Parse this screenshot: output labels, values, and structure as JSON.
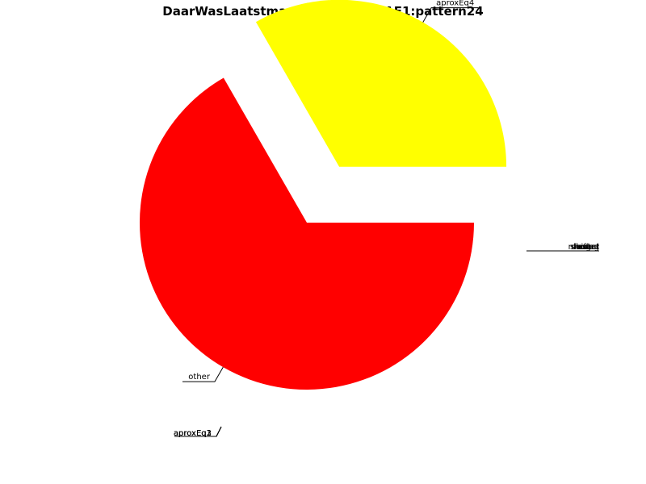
{
  "chart_data": {
    "type": "pie",
    "title": "DaarWasLaatstmaalEenRuiter:SIAF1:pattern24",
    "slices": [
      {
        "label": "other",
        "fraction": 0.667,
        "color": "#ff0000",
        "exploded": false
      },
      {
        "label": "aproxEq4",
        "fraction": 0.333,
        "color": "#ffff00",
        "exploded": true
      }
    ],
    "zero_slices": [
      {
        "label": "aproxEq1",
        "fraction": 0
      },
      {
        "label": "aproxEq2",
        "fraction": 0
      },
      {
        "label": "aproxEq3",
        "fraction": 0
      },
      {
        "label": "exact",
        "fraction": 0
      },
      {
        "label": "longer",
        "fraction": 0
      },
      {
        "label": "shorter",
        "fraction": 0
      },
      {
        "label": "missing",
        "fraction": 0
      },
      {
        "label": "extra",
        "fraction": 0
      },
      {
        "label": "shifted",
        "fraction": 0
      }
    ]
  }
}
